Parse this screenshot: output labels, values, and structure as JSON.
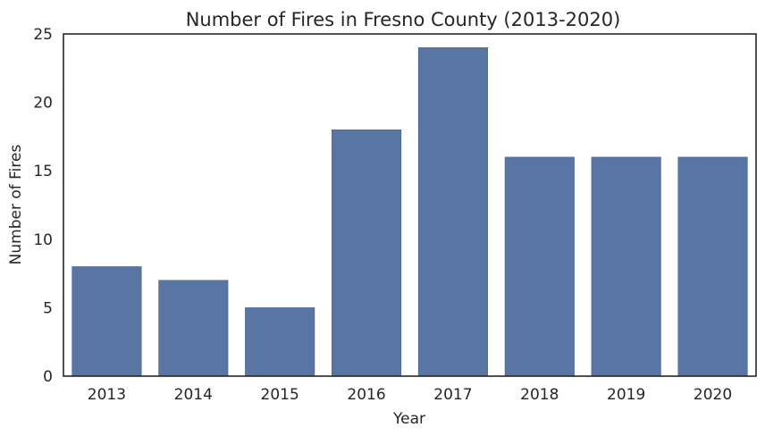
{
  "chart_data": {
    "type": "bar",
    "title": "Number of Fires in Fresno County (2013-2020)",
    "xlabel": "Year",
    "ylabel": "Number of Fires",
    "categories": [
      "2013",
      "2014",
      "2015",
      "2016",
      "2017",
      "2018",
      "2019",
      "2020"
    ],
    "values": [
      8,
      7,
      5,
      18,
      24,
      16,
      16,
      16
    ],
    "ylim": [
      0,
      25
    ],
    "yticks": [
      "0",
      "5",
      "10",
      "15",
      "20",
      "25"
    ],
    "grid": false,
    "bar_color": "#5975a4",
    "axes_color": "#262626"
  }
}
